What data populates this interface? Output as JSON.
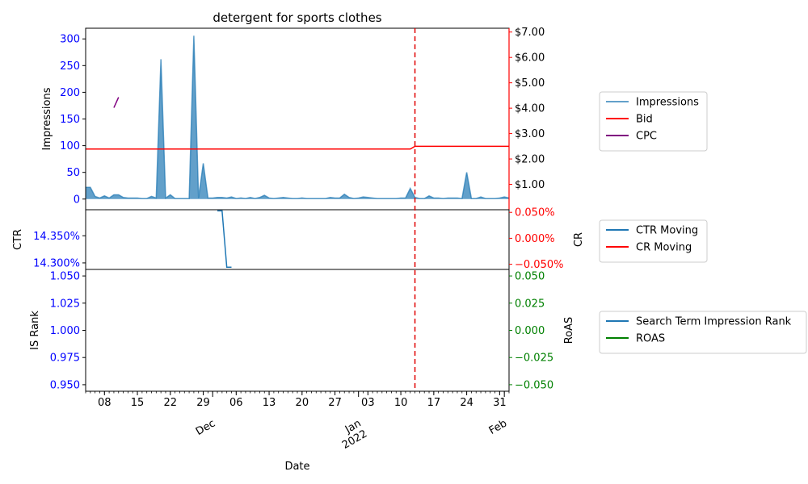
{
  "chart_data": {
    "type": "line",
    "title": "detergent for sports clothes",
    "xlabel": "Date",
    "x_range": [
      "2021-11-04",
      "2022-02-02"
    ],
    "x_day_ticks": [
      "08",
      "15",
      "22",
      "29",
      "06",
      "13",
      "20",
      "27",
      "03",
      "10",
      "17",
      "24",
      "31"
    ],
    "x_month_ticks": [
      {
        "label": "Dec",
        "date": "2021-12-01"
      },
      {
        "label": "Jan\n2022",
        "date": "2022-01-01"
      },
      {
        "label": "Feb",
        "date": "2022-02-01"
      }
    ],
    "vline": {
      "date": "2022-01-13",
      "color": "#e00000"
    },
    "colors": {
      "impressions": "#1f77b4",
      "bid": "#ff0000",
      "cpc": "#800080",
      "ctr": "#1f77b4",
      "cr": "#ff0000",
      "is_rank": "#1f77b4",
      "roas": "#008000",
      "left_ticks": "#0000ff",
      "right_ticks_top": "#ff0000",
      "right_ticks_bottom": "#008000"
    },
    "panels": [
      {
        "left_axis_label": "Impressions",
        "left_ylim": [
          -20,
          320
        ],
        "left_ticks": [
          "0",
          "50",
          "100",
          "150",
          "200",
          "250",
          "300"
        ],
        "right_axis_label": "",
        "right_ylim": [
          0.0,
          7.15
        ],
        "right_ticks": [
          "$1.00",
          "$2.00",
          "$3.00",
          "$4.00",
          "$5.00",
          "$6.00",
          "$7.00"
        ],
        "series": [
          {
            "name": "Impressions",
            "kind": "area",
            "x": [
              "2021-11-04",
              "2021-11-05",
              "2021-11-06",
              "2021-11-07",
              "2021-11-08",
              "2021-11-09",
              "2021-11-10",
              "2021-11-11",
              "2021-11-12",
              "2021-11-13",
              "2021-11-14",
              "2021-11-15",
              "2021-11-16",
              "2021-11-17",
              "2021-11-18",
              "2021-11-19",
              "2021-11-20",
              "2021-11-21",
              "2021-11-22",
              "2021-11-23",
              "2021-11-24",
              "2021-11-25",
              "2021-11-26",
              "2021-11-27",
              "2021-11-28",
              "2021-11-29",
              "2021-11-30",
              "2021-12-01",
              "2021-12-02",
              "2021-12-03",
              "2021-12-04",
              "2021-12-05",
              "2021-12-06",
              "2021-12-07",
              "2021-12-08",
              "2021-12-09",
              "2021-12-10",
              "2021-12-11",
              "2021-12-12",
              "2021-12-13",
              "2021-12-14",
              "2021-12-15",
              "2021-12-16",
              "2021-12-17",
              "2021-12-18",
              "2021-12-19",
              "2021-12-20",
              "2021-12-21",
              "2021-12-22",
              "2021-12-23",
              "2021-12-24",
              "2021-12-25",
              "2021-12-26",
              "2021-12-27",
              "2021-12-28",
              "2021-12-29",
              "2021-12-30",
              "2021-12-31",
              "2022-01-01",
              "2022-01-02",
              "2022-01-03",
              "2022-01-04",
              "2022-01-05",
              "2022-01-06",
              "2022-01-07",
              "2022-01-08",
              "2022-01-09",
              "2022-01-10",
              "2022-01-11",
              "2022-01-12",
              "2022-01-13",
              "2022-01-14",
              "2022-01-15",
              "2022-01-16",
              "2022-01-17",
              "2022-01-18",
              "2022-01-19",
              "2022-01-20",
              "2022-01-21",
              "2022-01-22",
              "2022-01-23",
              "2022-01-24",
              "2022-01-25",
              "2022-01-26",
              "2022-01-27",
              "2022-01-28",
              "2022-01-29",
              "2022-01-30",
              "2022-01-31",
              "2022-02-01",
              "2022-02-02"
            ],
            "values": [
              22,
              22,
              5,
              2,
              6,
              2,
              8,
              8,
              3,
              2,
              2,
              2,
              1,
              1,
              5,
              2,
              262,
              2,
              8,
              1,
              1,
              1,
              1,
              306,
              2,
              67,
              2,
              2,
              3,
              3,
              2,
              4,
              1,
              2,
              1,
              3,
              1,
              3,
              7,
              2,
              1,
              2,
              3,
              2,
              1,
              1,
              2,
              1,
              1,
              1,
              1,
              1,
              3,
              2,
              2,
              9,
              3,
              1,
              2,
              4,
              3,
              2,
              1,
              1,
              1,
              1,
              1,
              2,
              2,
              20,
              3,
              1,
              1,
              6,
              2,
              2,
              1,
              2,
              2,
              2,
              1,
              50,
              1,
              1,
              4,
              1,
              1,
              1,
              2,
              4,
              2
            ]
          },
          {
            "name": "Bid",
            "kind": "line",
            "axis": "right",
            "x": [
              "2021-11-04",
              "2022-01-12",
              "2022-01-13",
              "2022-02-02"
            ],
            "values": [
              2.39,
              2.39,
              2.5,
              2.5
            ]
          },
          {
            "name": "CPC",
            "kind": "line",
            "axis": "right",
            "x": [
              "2021-11-10",
              "2021-11-11"
            ],
            "values": [
              4.02,
              4.43
            ]
          }
        ]
      },
      {
        "left_axis_label": "CTR",
        "left_ylim": [
          14.288,
          14.398
        ],
        "left_ticks": [
          "14.300%",
          "14.350%"
        ],
        "right_axis_label": "CR",
        "right_ylim": [
          -0.06,
          0.055
        ],
        "right_ticks": [
          "−0.050%",
          "0.000%",
          "0.050%"
        ],
        "series": [
          {
            "name": "CTR Moving",
            "kind": "line",
            "x": [
              "2021-12-02",
              "2021-12-03",
              "2021-12-04",
              "2021-12-05"
            ],
            "values": [
              14.396,
              14.396,
              14.292,
              14.292
            ]
          },
          {
            "name": "CR Moving",
            "kind": "line",
            "axis": "right",
            "x": [],
            "values": []
          }
        ]
      },
      {
        "left_axis_label": "IS Rank",
        "left_ylim": [
          0.944,
          1.056
        ],
        "left_ticks": [
          "0.950",
          "0.975",
          "1.000",
          "1.025",
          "1.050"
        ],
        "right_axis_label": "RoAS",
        "right_ylim": [
          -0.056,
          0.056
        ],
        "right_ticks": [
          "−0.050",
          "−0.025",
          "0.000",
          "0.025",
          "0.050"
        ],
        "series": [
          {
            "name": "Search Term Impression Rank",
            "kind": "line",
            "x": [],
            "values": []
          },
          {
            "name": "ROAS",
            "kind": "line",
            "axis": "right",
            "x": [],
            "values": []
          }
        ]
      }
    ],
    "legends": [
      {
        "panel": 0,
        "placement": "right",
        "entries": [
          {
            "label": "Impressions",
            "color": "#1f77b4",
            "alpha": 0.7
          },
          {
            "label": "Bid",
            "color": "#ff0000"
          },
          {
            "label": "CPC",
            "color": "#800080"
          }
        ]
      },
      {
        "panel": 1,
        "placement": "right",
        "entries": [
          {
            "label": "CTR Moving",
            "color": "#1f77b4"
          },
          {
            "label": "CR Moving",
            "color": "#ff0000"
          }
        ]
      },
      {
        "panel": 2,
        "placement": "right",
        "entries": [
          {
            "label": "Search Term Impression Rank",
            "color": "#1f77b4"
          },
          {
            "label": "ROAS",
            "color": "#008000"
          }
        ]
      }
    ]
  }
}
